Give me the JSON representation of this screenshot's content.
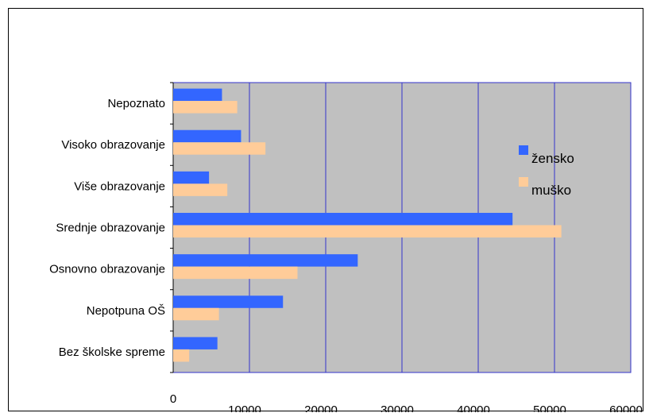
{
  "chart_data": {
    "type": "bar",
    "orientation": "horizontal",
    "categories": [
      "Nepoznato",
      "Visoko obrazovanje",
      "Više obrazovanje",
      "Srednje obrazovanje",
      "Osnovno obrazovanje",
      "Nepotpuna OŠ",
      "Bez školske spreme"
    ],
    "series": [
      {
        "name": "žensko",
        "color": "#3366ff",
        "values": [
          6400,
          8900,
          4700,
          44500,
          24200,
          14400,
          5800
        ]
      },
      {
        "name": "muško",
        "color": "#ffcc99",
        "values": [
          8400,
          12100,
          7100,
          50900,
          16300,
          6000,
          2100
        ]
      }
    ],
    "xlim": [
      0,
      60000
    ],
    "xticks": [
      "0",
      "10000",
      "20000",
      "30000",
      "40000",
      "50000",
      "60000"
    ],
    "grid": true,
    "plot_background": "#c0c0c0",
    "gridline_color": "#3333cc",
    "legend_position": "right"
  }
}
